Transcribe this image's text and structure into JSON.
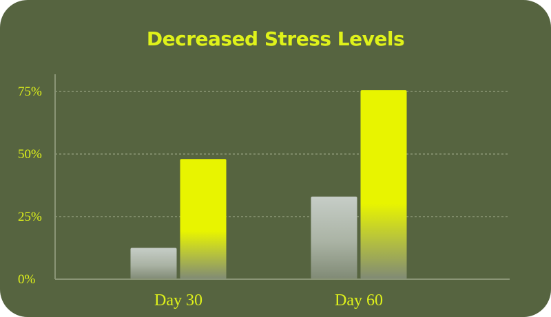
{
  "chart_data": {
    "type": "bar",
    "title": "Decreased Stress Levels",
    "categories": [
      "Day 30",
      "Day 60"
    ],
    "series": [
      {
        "values": [
          12.5,
          33
        ]
      },
      {
        "values": [
          48,
          75.5
        ]
      }
    ],
    "ylim": [
      0,
      75
    ],
    "yticks": [
      0,
      25,
      50,
      75
    ],
    "ytick_labels": [
      "0%",
      "25%",
      "50%",
      "75%"
    ],
    "xlabel": "",
    "ylabel": "",
    "grid": true,
    "colors": {
      "background": "#566440",
      "accent": "#dff21a",
      "gridline": "#a7b08f",
      "axis": "#8a9576",
      "series_0_top": "#c6cdc7",
      "series_0_bottom": "#808a75",
      "series_1_top": "#e8f400",
      "series_1_bottom": "#808a75"
    }
  }
}
